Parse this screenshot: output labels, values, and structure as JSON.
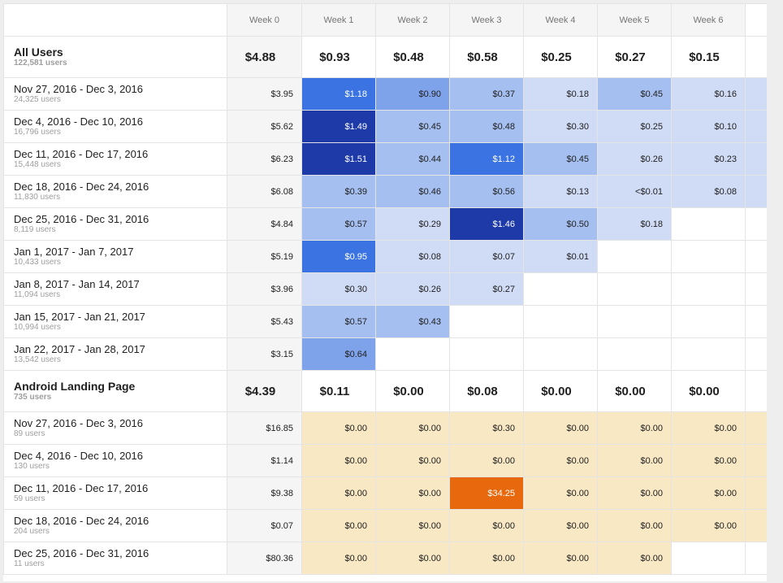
{
  "headers": [
    "",
    "Week 0",
    "Week 1",
    "Week 2",
    "Week 3",
    "Week 4",
    "Week 5",
    "Week 6"
  ],
  "segments": [
    {
      "name": "All Users",
      "users": "122,581 users",
      "totals": [
        "$4.88",
        "$0.93",
        "$0.48",
        "$0.58",
        "$0.25",
        "$0.27",
        "$0.15"
      ],
      "palette": "blue",
      "rows": [
        {
          "range": "Nov 27, 2016 - Dec 3, 2016",
          "users": "24,325 users",
          "values": [
            "$3.95",
            "$1.18",
            "$0.90",
            "$0.37",
            "$0.18",
            "$0.45",
            "$0.16"
          ],
          "heat": [
            0,
            4,
            3,
            2,
            1,
            2,
            1
          ]
        },
        {
          "range": "Dec 4, 2016 - Dec 10, 2016",
          "users": "16,796 users",
          "values": [
            "$5.62",
            "$1.49",
            "$0.45",
            "$0.48",
            "$0.30",
            "$0.25",
            "$0.10"
          ],
          "heat": [
            0,
            5,
            2,
            2,
            1,
            1,
            1
          ]
        },
        {
          "range": "Dec 11, 2016 - Dec 17, 2016",
          "users": "15,448 users",
          "values": [
            "$6.23",
            "$1.51",
            "$0.44",
            "$1.12",
            "$0.45",
            "$0.26",
            "$0.23"
          ],
          "heat": [
            0,
            5,
            2,
            4,
            2,
            1,
            1
          ]
        },
        {
          "range": "Dec 18, 2016 - Dec 24, 2016",
          "users": "11,830 users",
          "values": [
            "$6.08",
            "$0.39",
            "$0.46",
            "$0.56",
            "$0.13",
            "<$0.01",
            "$0.08"
          ],
          "heat": [
            0,
            2,
            2,
            2,
            1,
            1,
            1
          ]
        },
        {
          "range": "Dec 25, 2016 - Dec 31, 2016",
          "users": "8,119 users",
          "values": [
            "$4.84",
            "$0.57",
            "$0.29",
            "$1.46",
            "$0.50",
            "$0.18",
            ""
          ],
          "heat": [
            0,
            2,
            1,
            5,
            2,
            1,
            -1
          ]
        },
        {
          "range": "Jan 1, 2017 - Jan 7, 2017",
          "users": "10,433 users",
          "values": [
            "$5.19",
            "$0.95",
            "$0.08",
            "$0.07",
            "$0.01",
            "",
            ""
          ],
          "heat": [
            0,
            4,
            1,
            1,
            1,
            -1,
            -1
          ]
        },
        {
          "range": "Jan 8, 2017 - Jan 14, 2017",
          "users": "11,094 users",
          "values": [
            "$3.96",
            "$0.30",
            "$0.26",
            "$0.27",
            "",
            "",
            ""
          ],
          "heat": [
            0,
            1,
            1,
            1,
            -1,
            -1,
            -1
          ]
        },
        {
          "range": "Jan 15, 2017 - Jan 21, 2017",
          "users": "10,994 users",
          "values": [
            "$5.43",
            "$0.57",
            "$0.43",
            "",
            "",
            "",
            ""
          ],
          "heat": [
            0,
            2,
            2,
            -1,
            -1,
            -1,
            -1
          ]
        },
        {
          "range": "Jan 22, 2017 - Jan 28, 2017",
          "users": "13,542 users",
          "values": [
            "$3.15",
            "$0.64",
            "",
            "",
            "",
            "",
            ""
          ],
          "heat": [
            0,
            3,
            -1,
            -1,
            -1,
            -1,
            -1
          ]
        }
      ]
    },
    {
      "name": "Android Landing Page",
      "users": "735 users",
      "totals": [
        "$4.39",
        "$0.11",
        "$0.00",
        "$0.08",
        "$0.00",
        "$0.00",
        "$0.00"
      ],
      "palette": "amber",
      "rows": [
        {
          "range": "Nov 27, 2016 - Dec 3, 2016",
          "users": "89 users",
          "values": [
            "$16.85",
            "$0.00",
            "$0.00",
            "$0.30",
            "$0.00",
            "$0.00",
            "$0.00"
          ],
          "heat": [
            0,
            0,
            0,
            0,
            0,
            0,
            0
          ]
        },
        {
          "range": "Dec 4, 2016 - Dec 10, 2016",
          "users": "130 users",
          "values": [
            "$1.14",
            "$0.00",
            "$0.00",
            "$0.00",
            "$0.00",
            "$0.00",
            "$0.00"
          ],
          "heat": [
            0,
            0,
            0,
            0,
            0,
            0,
            0
          ]
        },
        {
          "range": "Dec 11, 2016 - Dec 17, 2016",
          "users": "59 users",
          "values": [
            "$9.38",
            "$0.00",
            "$0.00",
            "$34.25",
            "$0.00",
            "$0.00",
            "$0.00"
          ],
          "heat": [
            0,
            0,
            0,
            5,
            0,
            0,
            0
          ]
        },
        {
          "range": "Dec 18, 2016 - Dec 24, 2016",
          "users": "204 users",
          "values": [
            "$0.07",
            "$0.00",
            "$0.00",
            "$0.00",
            "$0.00",
            "$0.00",
            "$0.00"
          ],
          "heat": [
            0,
            0,
            0,
            0,
            0,
            0,
            0
          ]
        },
        {
          "range": "Dec 25, 2016 - Dec 31, 2016",
          "users": "11 users",
          "values": [
            "$80.36",
            "$0.00",
            "$0.00",
            "$0.00",
            "$0.00",
            "$0.00",
            ""
          ],
          "heat": [
            0,
            0,
            0,
            0,
            0,
            0,
            -1
          ]
        }
      ]
    }
  ]
}
